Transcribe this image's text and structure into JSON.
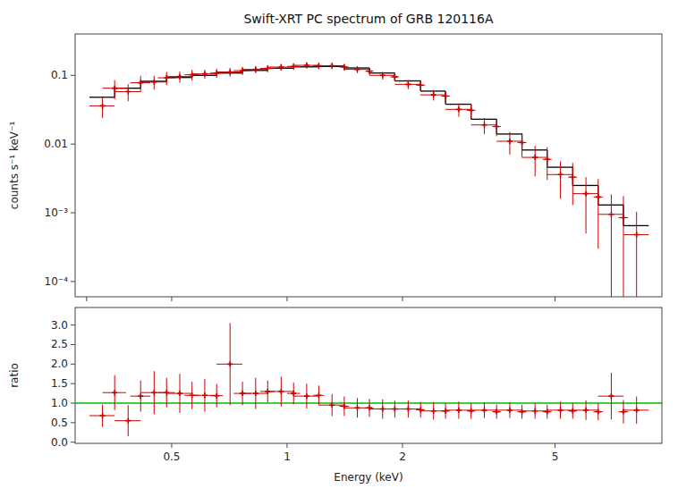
{
  "chart_data": [
    {
      "type": "errorbar",
      "title": "Swift-XRT PC spectrum of GRB 120116A",
      "ylabel": "counts s⁻¹ keV⁻¹",
      "log": true,
      "xlim": [
        0.28,
        9.5
      ],
      "ylim": [
        6e-05,
        0.4
      ],
      "xticks": [
        0.3,
        0.5,
        1,
        2,
        5
      ],
      "yticks": [
        {
          "value": 0.0001,
          "label": "10⁻⁴"
        },
        {
          "value": 0.001,
          "label": "10⁻³"
        },
        0.01,
        0.1
      ],
      "tick_labels": "y",
      "series": [
        {
          "type": "step",
          "color": "#000000",
          "bins": [
            0.305,
            0.355,
            0.415,
            0.485,
            0.565,
            0.655,
            0.765,
            0.89,
            1.04,
            1.21,
            1.41,
            1.64,
            1.91,
            2.23,
            2.59,
            3.02,
            3.52,
            4.1,
            4.77,
            5.56,
            6.48,
            7.54,
            8.78
          ],
          "values": [
            0.048,
            0.065,
            0.082,
            0.093,
            0.1,
            0.108,
            0.118,
            0.127,
            0.133,
            0.135,
            0.128,
            0.108,
            0.083,
            0.059,
            0.038,
            0.023,
            0.014,
            0.0082,
            0.0046,
            0.0025,
            0.0013,
            0.00065
          ]
        },
        {
          "type": "errorbar",
          "color": "#cc0000",
          "marker": "plus",
          "x": [
            0.33,
            0.385,
            0.45,
            0.525,
            0.61,
            0.71,
            0.828,
            0.965,
            1.125,
            1.31,
            1.525,
            1.775,
            2.07,
            2.41,
            2.805,
            3.27,
            3.81,
            4.435,
            5.165,
            6.02,
            7.01,
            8.16
          ],
          "x_errors": [
            0.025,
            0.03,
            0.035,
            0.04,
            0.045,
            0.055,
            0.063,
            0.075,
            0.085,
            0.1,
            0.115,
            0.135,
            0.16,
            0.185,
            0.215,
            0.25,
            0.29,
            0.34,
            0.395,
            0.46,
            0.535,
            0.62
          ],
          "values": [
            0.036,
            0.058,
            0.08,
            0.096,
            0.105,
            0.112,
            0.122,
            0.132,
            0.14,
            0.138,
            0.122,
            0.1,
            0.074,
            0.052,
            0.032,
            0.019,
            0.011,
            0.0064,
            0.0036,
            0.0019,
            0.00095,
            0.00048
          ],
          "errors": [
            0.012,
            0.016,
            0.018,
            0.018,
            0.016,
            0.016,
            0.015,
            0.015,
            0.015,
            0.015,
            0.014,
            0.013,
            0.011,
            0.009,
            0.007,
            0.005,
            0.004,
            0.003,
            0.002,
            0.0014,
            0.0009,
            0.00055
          ]
        },
        {
          "type": "errorbar",
          "color": "#cc0000",
          "marker": "plus",
          "x": [
            0.355,
            0.415,
            0.485,
            0.565,
            0.655,
            0.765,
            0.89,
            1.04,
            1.21,
            1.41,
            1.64,
            1.91,
            2.23,
            2.59,
            3.02,
            3.52,
            4.1,
            4.77,
            5.56,
            6.48,
            7.54
          ],
          "x_errors": [
            0.025,
            0.025,
            0.025,
            0.025,
            0.025,
            0.04,
            0.04,
            0.04,
            0.04,
            0.04,
            0.04,
            0.05,
            0.06,
            0.07,
            0.08,
            0.09,
            0.11,
            0.13,
            0.15,
            0.18,
            0.22
          ],
          "values": [
            0.065,
            0.078,
            0.092,
            0.102,
            0.108,
            0.117,
            0.126,
            0.135,
            0.138,
            0.132,
            0.115,
            0.095,
            0.072,
            0.05,
            0.031,
            0.018,
            0.0105,
            0.006,
            0.0033,
            0.0017,
            0.00085
          ],
          "errors": [
            0.02,
            0.02,
            0.02,
            0.018,
            0.016,
            0.016,
            0.015,
            0.015,
            0.015,
            0.015,
            0.014,
            0.013,
            0.011,
            0.009,
            0.007,
            0.005,
            0.004,
            0.003,
            0.002,
            0.0014,
            0.0009
          ]
        }
      ]
    },
    {
      "type": "errorbar",
      "xlabel": "Energy (keV)",
      "ylabel": "ratio",
      "log": "x",
      "xlim": [
        0.28,
        9.5
      ],
      "ylim": [
        -0.03,
        3.45
      ],
      "xticks": [
        0.5,
        1,
        2,
        5
      ],
      "yticks": [
        {
          "value": 0,
          "label": "0.0"
        },
        0.5,
        {
          "value": 1,
          "label": "1.0"
        },
        1.5,
        {
          "value": 2,
          "label": "2.0"
        },
        2.5,
        {
          "value": 3,
          "label": "3.0"
        }
      ],
      "reference_lines": [
        {
          "value": 1.0,
          "color": "#00bb00"
        }
      ],
      "series": [
        {
          "type": "errorbar",
          "color": "#cc0000",
          "marker": "plus",
          "x": [
            0.33,
            0.385,
            0.45,
            0.525,
            0.61,
            0.71,
            0.828,
            0.965,
            1.125,
            1.31,
            1.525,
            1.775,
            2.07,
            2.41,
            2.805,
            3.27,
            3.81,
            4.435,
            5.165,
            6.02,
            7.01,
            8.16
          ],
          "x_errors": [
            0.025,
            0.03,
            0.035,
            0.04,
            0.045,
            0.055,
            0.063,
            0.075,
            0.085,
            0.1,
            0.115,
            0.135,
            0.16,
            0.185,
            0.215,
            0.25,
            0.29,
            0.34,
            0.395,
            0.46,
            0.535,
            0.62
          ],
          "values": [
            0.68,
            0.55,
            1.27,
            1.25,
            1.2,
            2.0,
            1.25,
            1.3,
            1.18,
            0.95,
            0.88,
            0.85,
            0.85,
            0.8,
            0.82,
            0.82,
            0.82,
            0.8,
            0.82,
            0.82,
            1.18,
            0.82
          ],
          "errors": [
            0.28,
            0.4,
            0.55,
            0.5,
            0.42,
            1.05,
            0.4,
            0.38,
            0.32,
            0.28,
            0.25,
            0.25,
            0.22,
            0.22,
            0.22,
            0.2,
            0.2,
            0.2,
            0.22,
            0.25,
            0.6,
            0.35
          ]
        },
        {
          "type": "errorbar",
          "color": "#cc0000",
          "marker": "plus",
          "x": [
            0.355,
            0.415,
            0.485,
            0.565,
            0.655,
            0.765,
            0.89,
            1.04,
            1.21,
            1.41,
            1.64,
            1.91,
            2.23,
            2.59,
            3.02,
            3.52,
            4.1,
            4.77,
            5.56,
            6.48,
            7.54
          ],
          "x_errors": [
            0.025,
            0.025,
            0.025,
            0.025,
            0.025,
            0.04,
            0.04,
            0.04,
            0.04,
            0.04,
            0.04,
            0.05,
            0.06,
            0.07,
            0.08,
            0.09,
            0.11,
            0.13,
            0.15,
            0.18,
            0.22
          ],
          "values": [
            1.27,
            1.18,
            1.27,
            1.2,
            1.19,
            1.25,
            1.3,
            1.25,
            1.2,
            0.92,
            0.88,
            0.85,
            0.83,
            0.8,
            0.8,
            0.78,
            0.78,
            0.78,
            0.8,
            0.78,
            0.78
          ],
          "errors": [
            0.45,
            0.4,
            0.38,
            0.35,
            0.3,
            0.3,
            0.28,
            0.28,
            0.25,
            0.25,
            0.23,
            0.22,
            0.2,
            0.2,
            0.2,
            0.18,
            0.18,
            0.18,
            0.2,
            0.22,
            0.3
          ]
        }
      ]
    }
  ]
}
